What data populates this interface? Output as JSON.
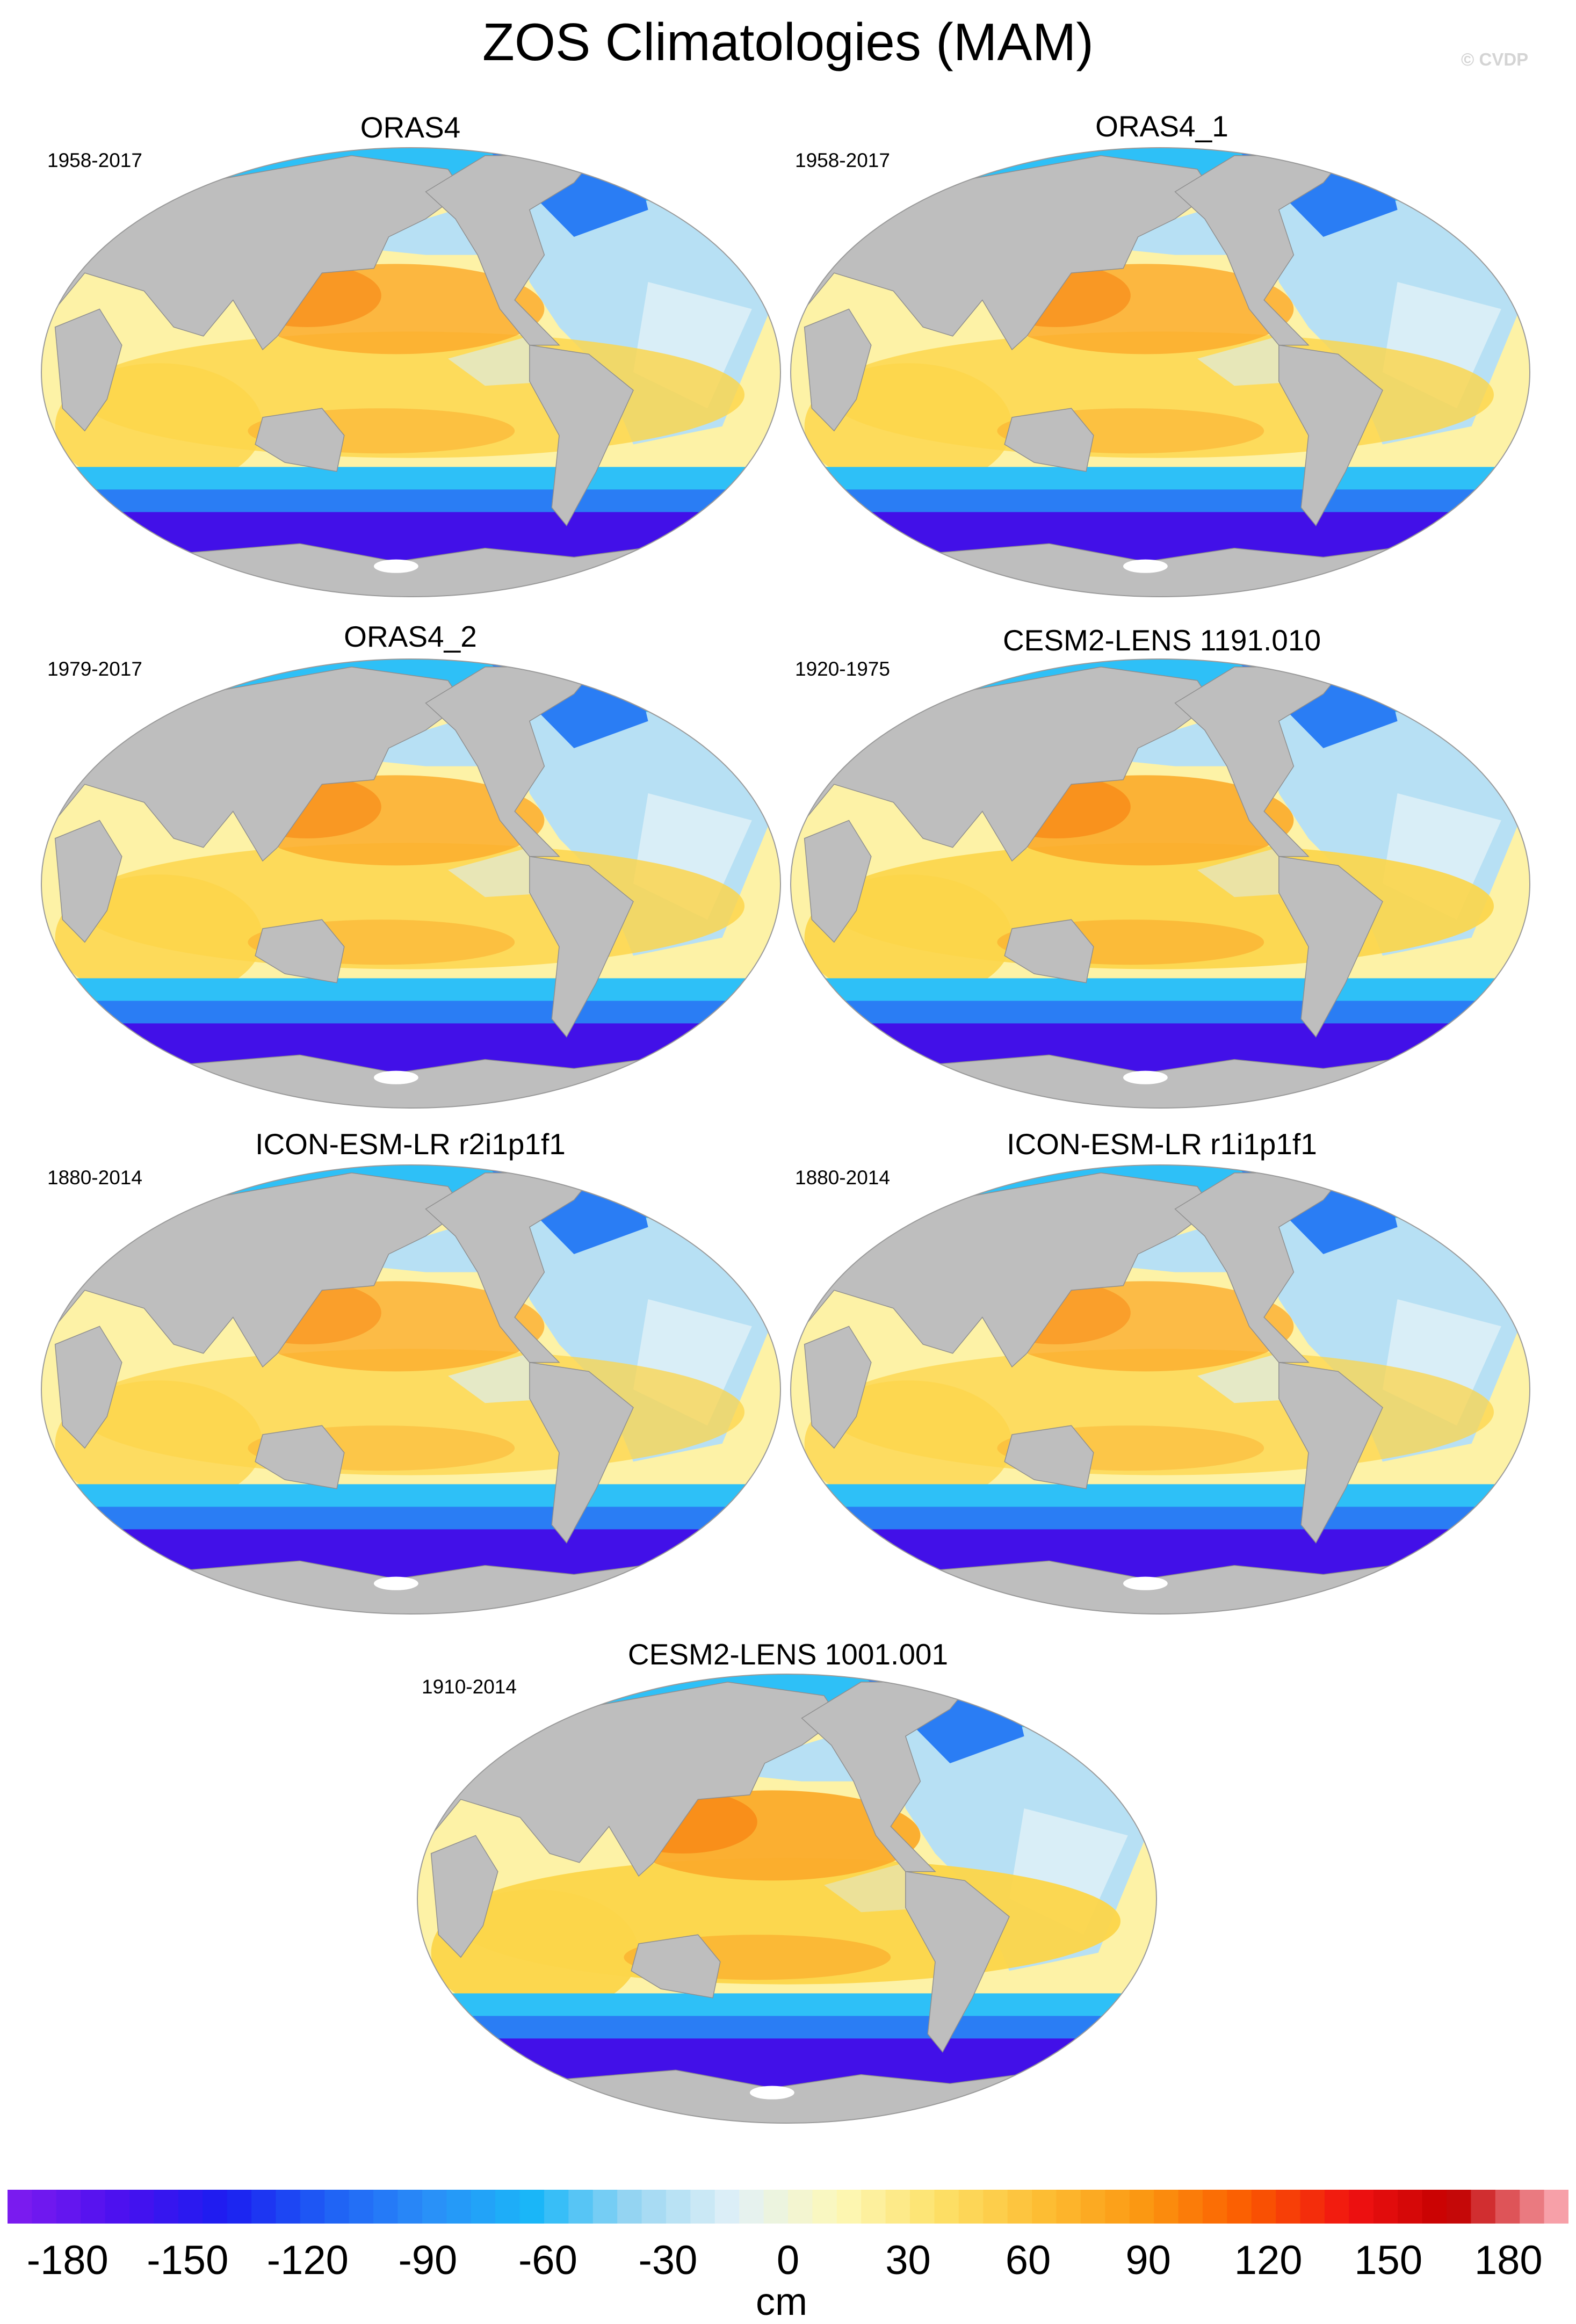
{
  "title": "ZOS Climatologies (MAM)",
  "credit": "© CVDP",
  "land_color": "#bebebe",
  "panels": [
    {
      "name": "ORAS4",
      "years": "1958-2017",
      "intensity": 0.6
    },
    {
      "name": "ORAS4_1",
      "years": "1958-2017",
      "intensity": 0.6
    },
    {
      "name": "ORAS4_2",
      "years": "1979-2017",
      "intensity": 0.62
    },
    {
      "name": "CESM2-LENS 1191.010",
      "years": "1920-1975",
      "intensity": 0.8
    },
    {
      "name": "ICON-ESM-LR r2i1p1f1",
      "years": "1880-2014",
      "intensity": 0.45
    },
    {
      "name": "ICON-ESM-LR r1i1p1f1",
      "years": "1880-2014",
      "intensity": 0.45
    },
    {
      "name": "CESM2-LENS 1001.001",
      "years": "1910-2014",
      "intensity": 0.9
    }
  ],
  "colorbar": {
    "unit": "cm",
    "min": -195,
    "max": 195,
    "ticks": [
      "-180",
      "-150",
      "-120",
      "-90",
      "-60",
      "-30",
      "0",
      "30",
      "60",
      "90",
      "120",
      "150",
      "180"
    ],
    "colors": [
      "#7a1bef",
      "#4b10ef",
      "#1b1df0",
      "#1f5ff5",
      "#2a8ff8",
      "#1ab6f8",
      "#9ad6f2",
      "#e2f1f7",
      "#fdf8b8",
      "#fde066",
      "#fdbd33",
      "#fb9610",
      "#fb5a00",
      "#f01212",
      "#c20000",
      "#f7a0a8"
    ]
  }
}
